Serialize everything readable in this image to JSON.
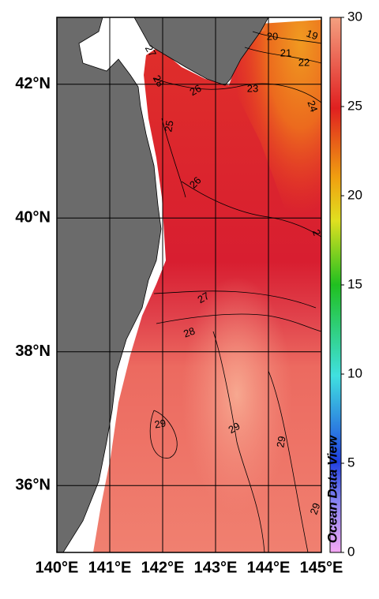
{
  "map": {
    "lat_axis": {
      "range": [
        35,
        43
      ],
      "ticks": [
        {
          "value": 36,
          "label": "36°N"
        },
        {
          "value": 38,
          "label": "38°N"
        },
        {
          "value": 40,
          "label": "40°N"
        },
        {
          "value": 42,
          "label": "42°N"
        }
      ]
    },
    "lon_axis": {
      "range": [
        140,
        145
      ],
      "ticks": [
        {
          "value": 140,
          "label": "140°E"
        },
        {
          "value": 141,
          "label": "141°E"
        },
        {
          "value": 142,
          "label": "142°E"
        },
        {
          "value": 143,
          "label": "143°E"
        },
        {
          "value": 144,
          "label": "144°E"
        },
        {
          "value": 145,
          "label": "145°E"
        }
      ]
    },
    "colorbar": {
      "range": [
        0,
        30
      ],
      "ticks": [
        0,
        5,
        10,
        15,
        20,
        25,
        30
      ]
    },
    "contour_labels": [
      "20",
      "19",
      "21",
      "22",
      "23",
      "24",
      "26",
      "28",
      "27",
      "25",
      "26",
      "2",
      "27",
      "28",
      "29",
      "29",
      "29",
      "29"
    ],
    "watermark": "Ocean Data View"
  }
}
